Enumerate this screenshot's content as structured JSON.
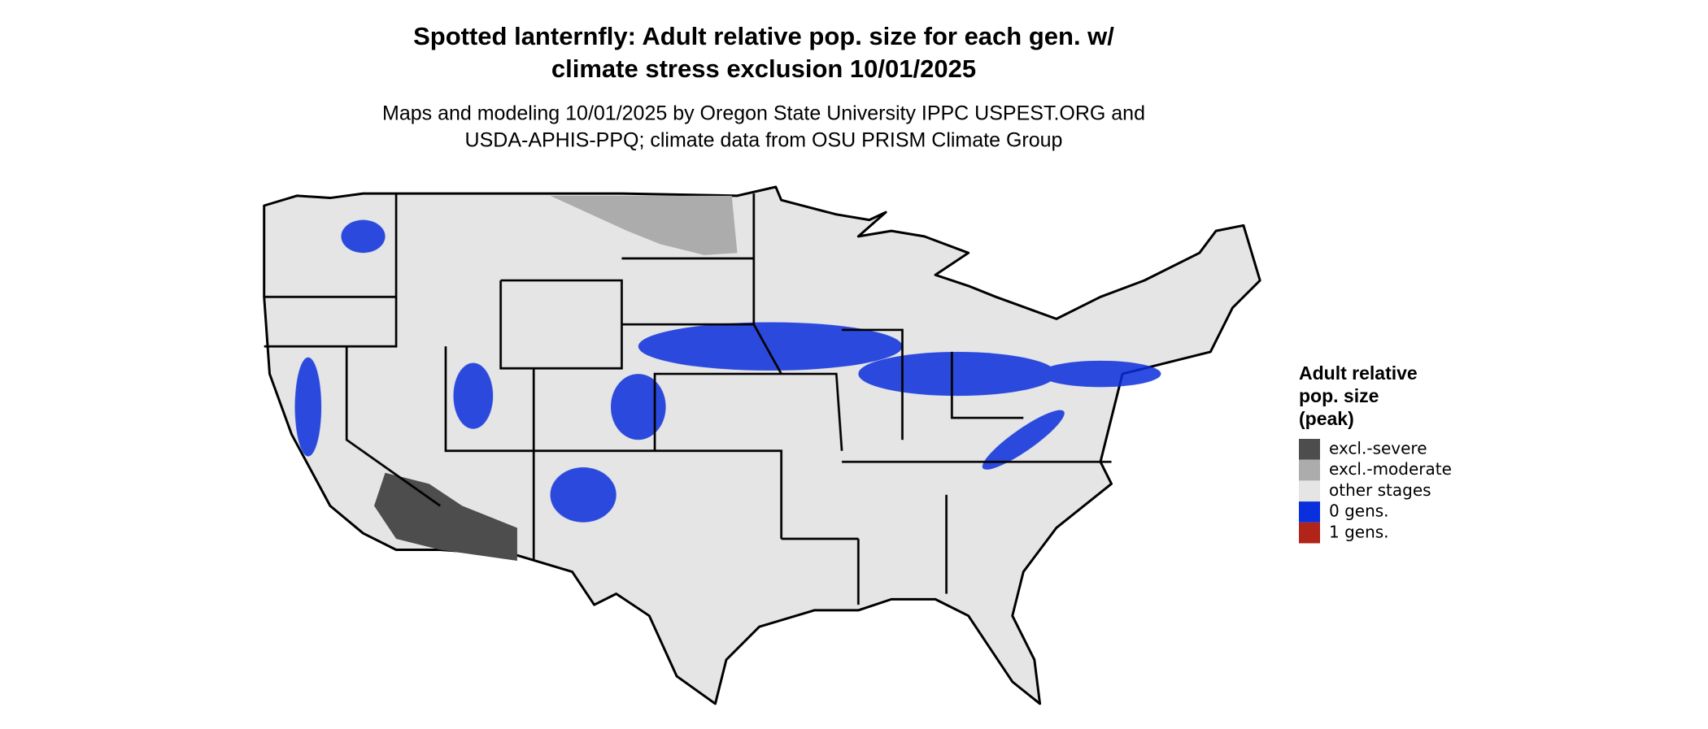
{
  "header": {
    "title": [
      "Spotted lanternfly: Adult relative pop. size for each gen. w/",
      "climate stress exclusion 10/01/2025"
    ],
    "subtitle": [
      "Maps and modeling 10/01/2025 by Oregon State University IPPC USPEST.ORG and",
      "USDA-APHIS-PPQ; climate data from OSU PRISM Climate Group"
    ]
  },
  "legend": {
    "title": [
      "Adult relative",
      "pop. size",
      "(peak)"
    ],
    "items": [
      {
        "label": "excl.-severe",
        "color": "#4d4d4d"
      },
      {
        "label": "excl.-moderate",
        "color": "#acacac"
      },
      {
        "label": "other stages",
        "color": "#e5e5e5"
      },
      {
        "label": "0 gens.",
        "color": "#0a2fdc"
      },
      {
        "label": "1 gens.",
        "color": "#b0241a"
      }
    ]
  }
}
